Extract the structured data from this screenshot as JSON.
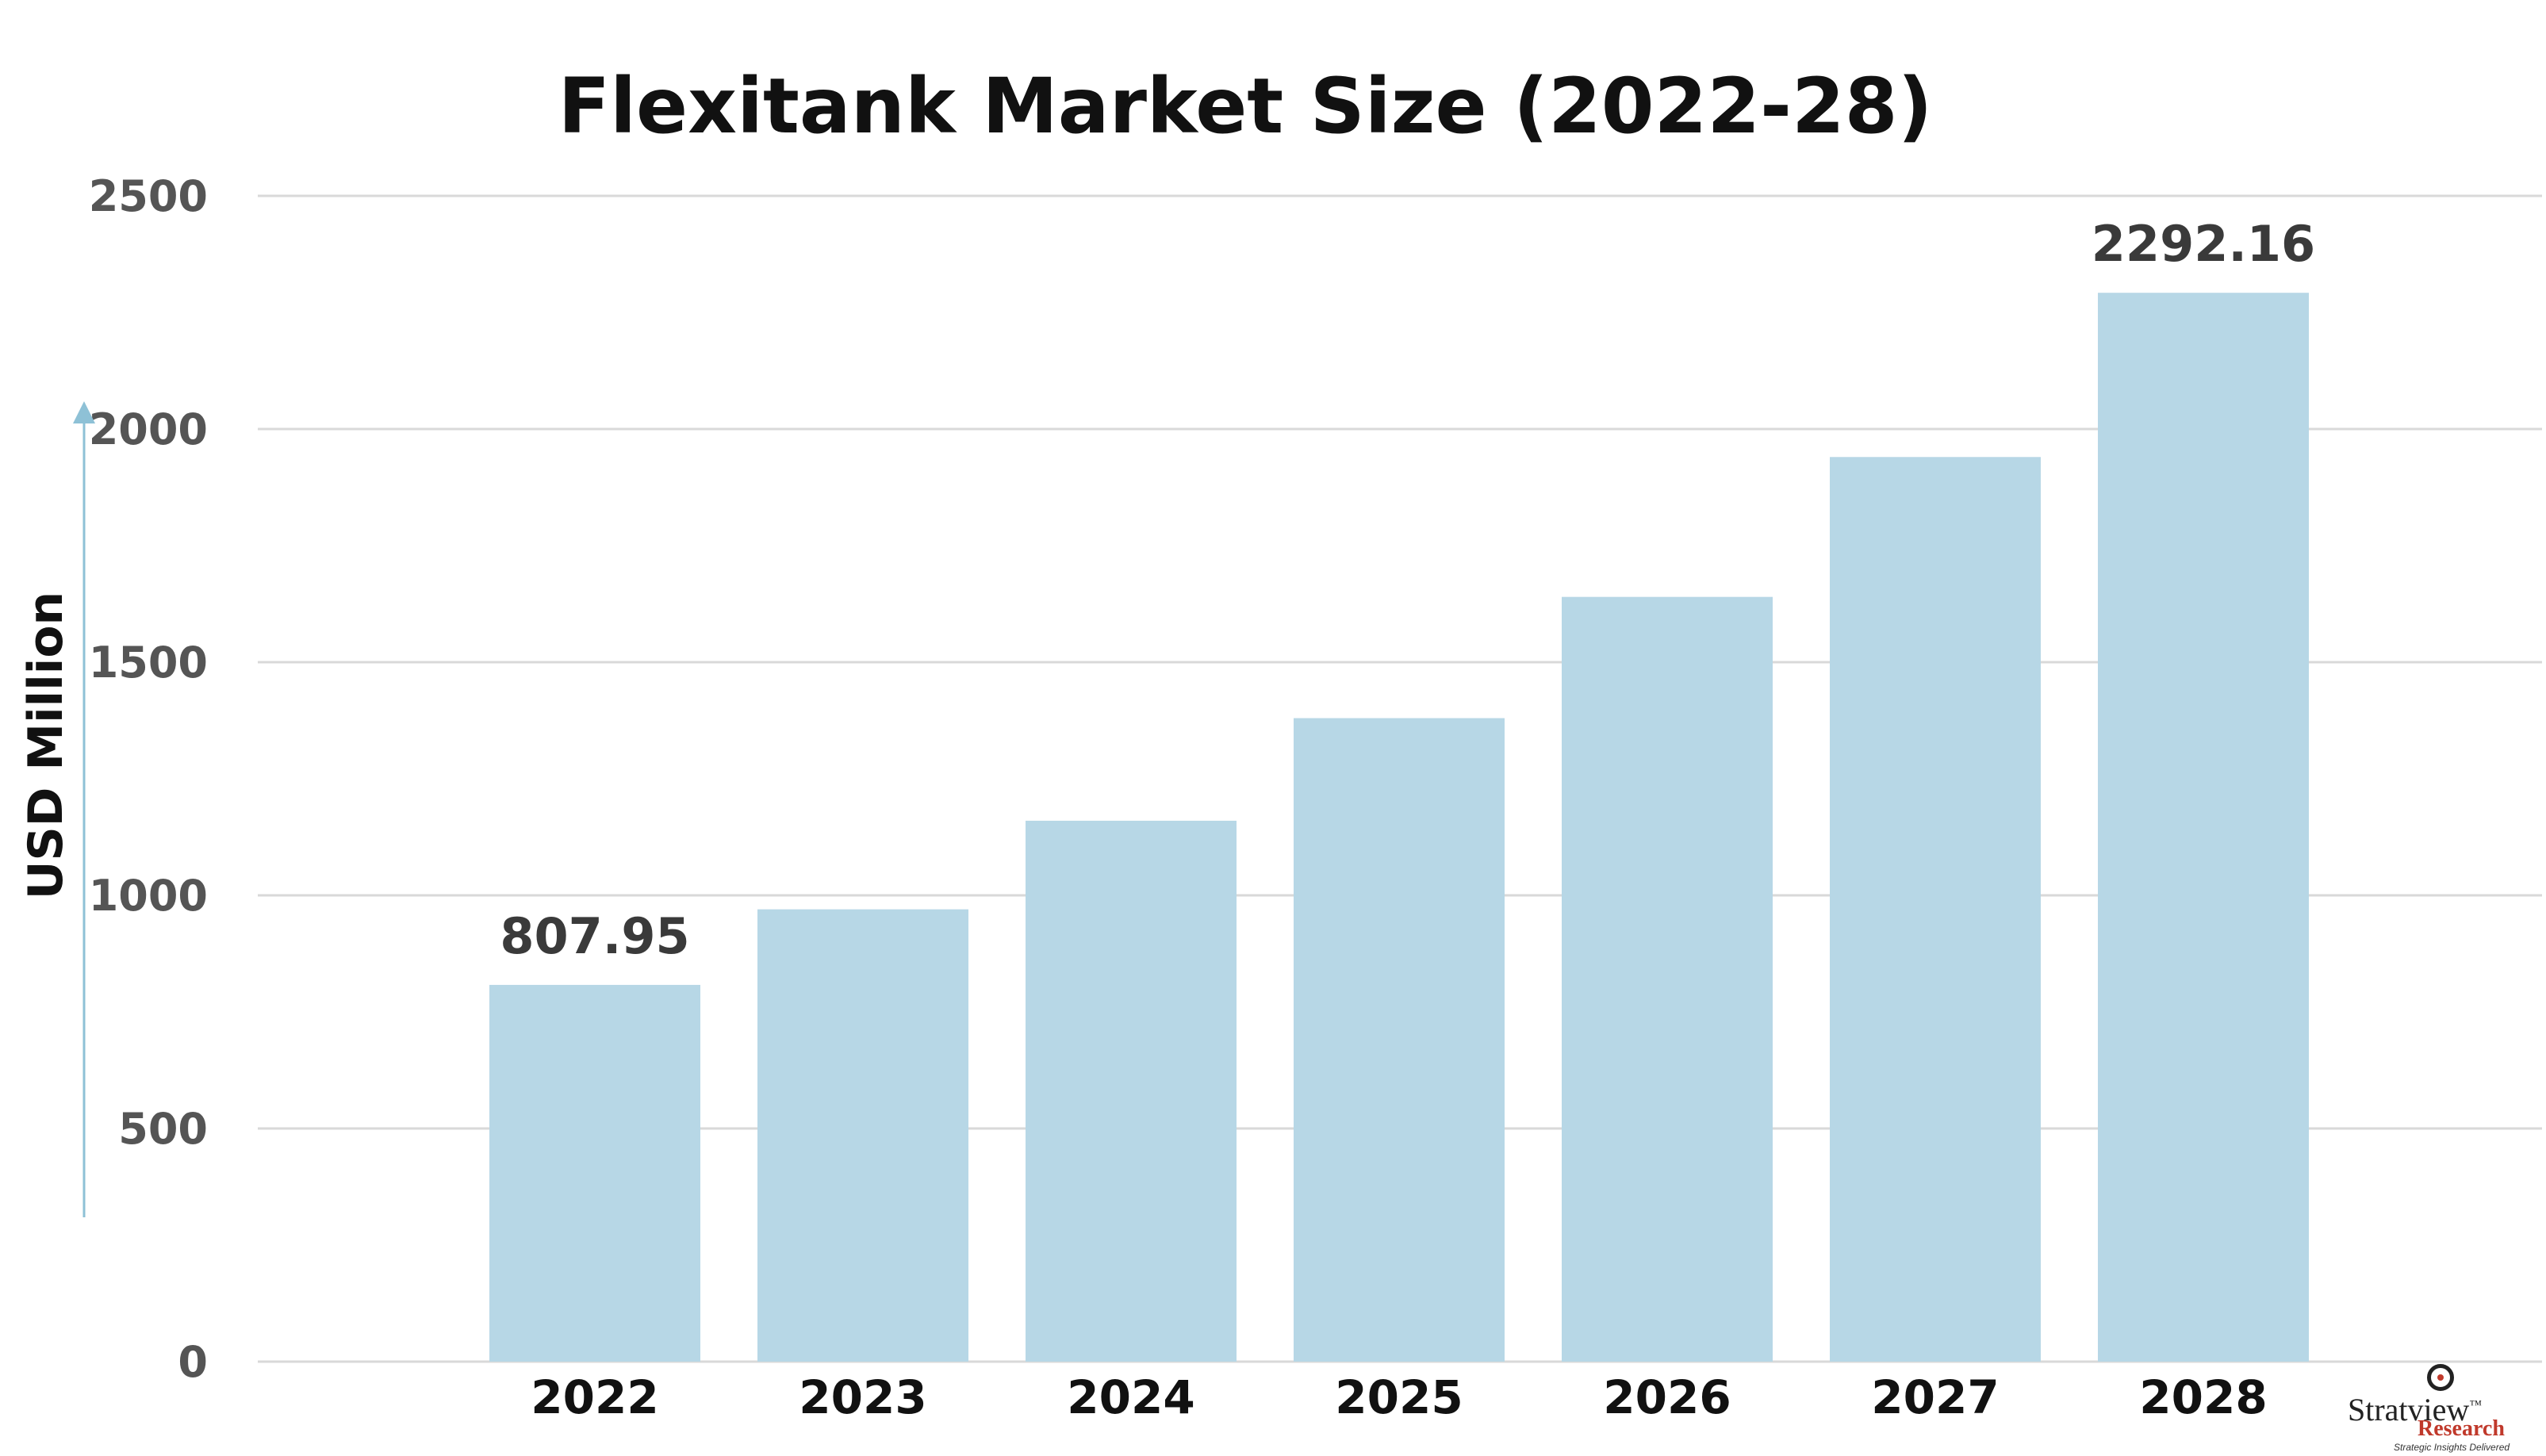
{
  "chart_data": {
    "type": "bar",
    "title": "Flexitank Market Size (2022-28)",
    "xlabel": "",
    "ylabel": "USD Million",
    "categories": [
      "2022",
      "2023",
      "2024",
      "2025",
      "2026",
      "2027",
      "2028"
    ],
    "values": [
      807.95,
      970,
      1160,
      1380,
      1640,
      1940,
      2292.16
    ],
    "data_labels": [
      "807.95",
      "",
      "",
      "",
      "",
      "",
      "2292.16"
    ],
    "ylim": [
      0,
      2500
    ],
    "yticks": [
      0,
      500,
      1000,
      1500,
      2000,
      2500
    ],
    "grid": true,
    "bar_color": "#b7d7e6",
    "grid_color": "#d9d9d9",
    "axis_arrow_color": "#8ec1d6"
  },
  "branding": {
    "name": "Stratview",
    "sub": "Research",
    "tagline": "Strategic Insights Delivered",
    "trademark": "™"
  }
}
